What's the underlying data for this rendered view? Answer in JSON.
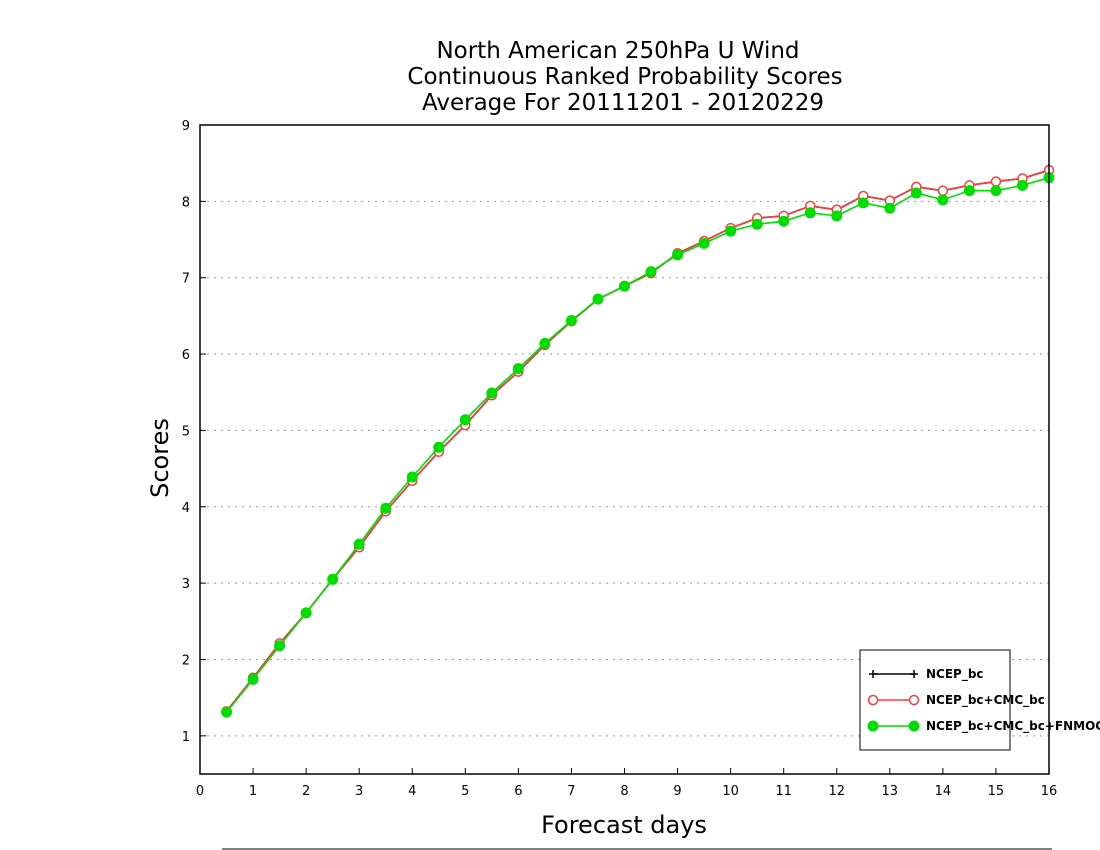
{
  "chart_data": {
    "type": "line",
    "title_lines": [
      "North American 250hPa U Wind",
      "Continuous Ranked Probability Scores",
      "Average For 20111201 - 20120229"
    ],
    "xlabel": "Forecast days",
    "ylabel": "Scores",
    "xlim": [
      0,
      16
    ],
    "ylim": [
      0.5,
      9
    ],
    "xticks": [
      0,
      1,
      2,
      3,
      4,
      5,
      6,
      7,
      8,
      9,
      10,
      11,
      12,
      13,
      14,
      15,
      16
    ],
    "yticks": [
      1,
      2,
      3,
      4,
      5,
      6,
      7,
      8,
      9
    ],
    "grid": "horizontal dotted",
    "legend_position": "bottom-right",
    "x": [
      0.5,
      1,
      1.5,
      2,
      2.5,
      3,
      3.5,
      4,
      4.5,
      5,
      5.5,
      6,
      6.5,
      7,
      7.5,
      8,
      8.5,
      9,
      9.5,
      10,
      10.5,
      11,
      11.5,
      12,
      12.5,
      13,
      13.5,
      14,
      14.5,
      15,
      15.5,
      16
    ],
    "series": [
      {
        "name": "NCEP_bc",
        "color": "#000000",
        "marker": "plus",
        "values": [
          1.32,
          1.76,
          2.21,
          2.61,
          3.05,
          3.47,
          3.94,
          4.34,
          4.72,
          5.07,
          5.46,
          5.77,
          6.12,
          6.43,
          6.72,
          6.89,
          7.06,
          7.32,
          7.48,
          7.65,
          7.78,
          7.81,
          7.94,
          7.89,
          8.07,
          8.01,
          8.19,
          8.14,
          8.21,
          8.26,
          8.3,
          8.41
        ]
      },
      {
        "name": "NCEP_bc+CMC_bc",
        "color": "#ff3a3a",
        "marker": "open-circle",
        "values": [
          1.32,
          1.76,
          2.21,
          2.61,
          3.05,
          3.47,
          3.94,
          4.34,
          4.72,
          5.07,
          5.46,
          5.77,
          6.12,
          6.43,
          6.72,
          6.89,
          7.06,
          7.32,
          7.48,
          7.65,
          7.78,
          7.81,
          7.94,
          7.89,
          8.07,
          8.01,
          8.19,
          8.14,
          8.21,
          8.26,
          8.3,
          8.41
        ]
      },
      {
        "name": "NCEP_bc+CMC_bc+FNMOC_bc",
        "color": "#00dd00",
        "marker": "filled-circle",
        "values": [
          1.31,
          1.74,
          2.18,
          2.61,
          3.05,
          3.51,
          3.98,
          4.39,
          4.78,
          5.14,
          5.49,
          5.81,
          6.14,
          6.44,
          6.72,
          6.89,
          7.08,
          7.3,
          7.45,
          7.61,
          7.7,
          7.74,
          7.85,
          7.81,
          7.98,
          7.91,
          8.11,
          8.02,
          8.14,
          8.14,
          8.21,
          8.31
        ]
      }
    ]
  }
}
